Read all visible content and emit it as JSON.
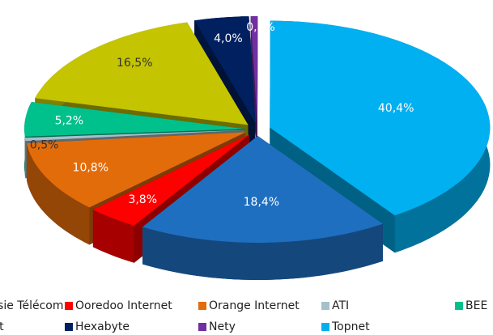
{
  "chart_data": {
    "type": "pie3d",
    "series": [
      {
        "name": "Tunisie Télécom",
        "color": "#1f6fc0"
      },
      {
        "name": "Ooredoo Internet",
        "color": "#ff0000"
      },
      {
        "name": "Orange Internet",
        "color": "#e36c0a"
      },
      {
        "name": "ATI",
        "color": "#a6bfcc"
      },
      {
        "name": "BEE",
        "color": "#00c08b"
      },
      {
        "name": "Globalnet",
        "color": "#c4c400"
      },
      {
        "name": "Hexabyte",
        "color": "#002060"
      },
      {
        "name": "Nety",
        "color": "#7030a0"
      },
      {
        "name": "Topnet",
        "color": "#00b0f0"
      }
    ],
    "values": [
      18.4,
      3.8,
      10.8,
      0.5,
      5.2,
      16.5,
      4.0,
      0.5,
      40.4
    ],
    "value_labels": [
      "18,4%",
      "3,8%",
      "10,8%",
      "0,5%",
      "5,2%",
      "16,5%",
      "4,0%",
      "0,5%",
      "40,4%"
    ]
  }
}
